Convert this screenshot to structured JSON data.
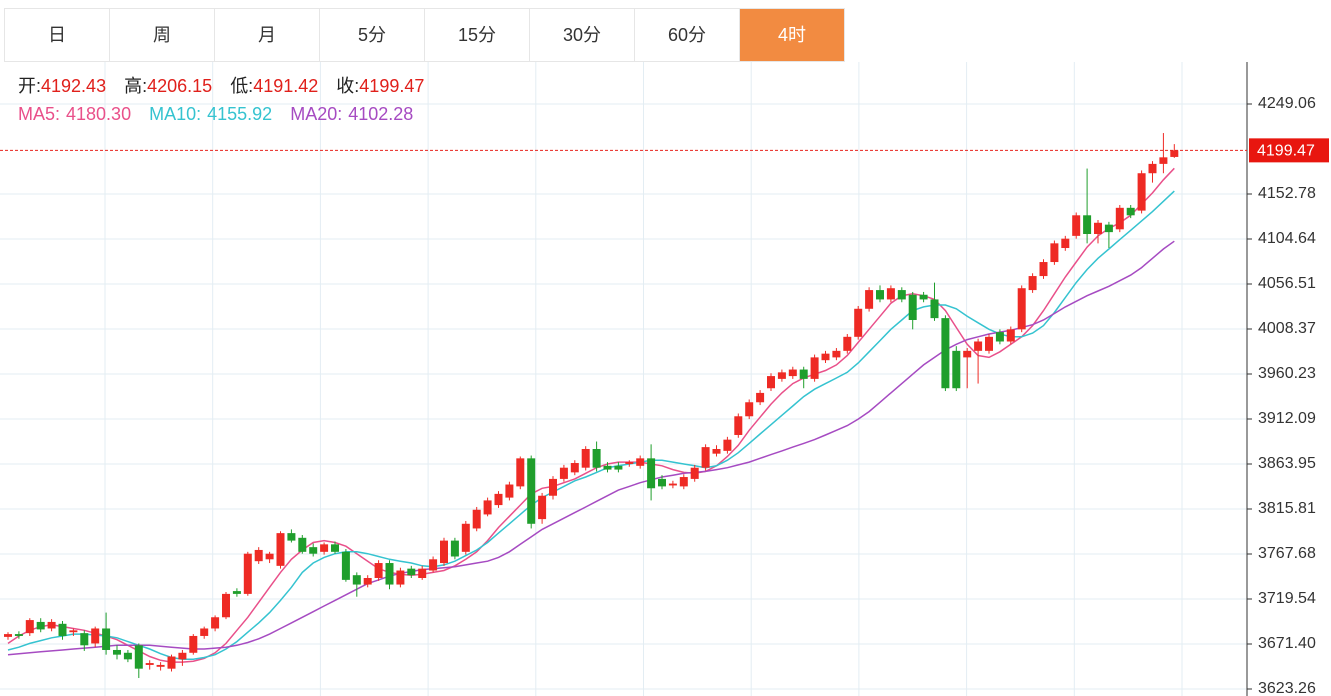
{
  "tabs": [
    "日",
    "周",
    "月",
    "5分",
    "15分",
    "30分",
    "60分",
    "4时"
  ],
  "active_tab": 7,
  "ohlc_info": [
    {
      "label": "开:",
      "value": 4192.43
    },
    {
      "label": "高:",
      "value": 4206.15
    },
    {
      "label": "低:",
      "value": 4191.42
    },
    {
      "label": "收:",
      "value": 4199.47
    }
  ],
  "chart_data": {
    "type": "candlestick",
    "up_color": "#ee2a24",
    "down_color": "#1f9e2c",
    "grid": true,
    "ylim": [
      3615.77,
      4293.99
    ],
    "yticks": [
      4249.06,
      4152.78,
      4104.64,
      4056.51,
      4008.37,
      3960.23,
      3912.09,
      3863.95,
      3815.81,
      3767.68,
      3719.54,
      {
        "value": 3671.4,
        "label": "3671.40"
      },
      3623.26
    ],
    "candles": [
      [
        3679,
        3684,
        3676,
        3682
      ],
      [
        3682,
        3685,
        3677,
        3680
      ],
      [
        3683,
        3699,
        3680,
        3697
      ],
      [
        3695,
        3699,
        3684,
        3687
      ],
      [
        3688,
        3698,
        3685,
        3695
      ],
      [
        3693,
        3696,
        3676,
        3680
      ],
      [
        3684,
        3688,
        3680,
        3686
      ],
      [
        3683,
        3686,
        3664,
        3670
      ],
      [
        3672,
        3690,
        3668,
        3688
      ],
      [
        3688,
        3705,
        3660,
        3665
      ],
      [
        3665,
        3670,
        3655,
        3660
      ],
      [
        3662,
        3665,
        3652,
        3655
      ],
      [
        3670,
        3672,
        3635,
        3645
      ],
      [
        3649,
        3654,
        3644,
        3651
      ],
      [
        3647,
        3652,
        3643,
        3649
      ],
      [
        3645,
        3660,
        3642,
        3658
      ],
      [
        3655,
        3665,
        3648,
        3662
      ],
      [
        3662,
        3682,
        3660,
        3680
      ],
      [
        3680,
        3690,
        3677,
        3688
      ],
      [
        3688,
        3702,
        3685,
        3700
      ],
      [
        3700,
        3727,
        3698,
        3725
      ],
      [
        3728,
        3731,
        3722,
        3725
      ],
      [
        3725,
        3770,
        3723,
        3768
      ],
      [
        3760,
        3775,
        3757,
        3772
      ],
      [
        3762,
        3770,
        3758,
        3768
      ],
      [
        3755,
        3792,
        3752,
        3790
      ],
      [
        3790,
        3794,
        3780,
        3782
      ],
      [
        3785,
        3788,
        3768,
        3770
      ],
      [
        3775,
        3779,
        3765,
        3768
      ],
      [
        3770,
        3780,
        3767,
        3778
      ],
      [
        3778,
        3781,
        3768,
        3770
      ],
      [
        3770,
        3773,
        3738,
        3740
      ],
      [
        3745,
        3748,
        3722,
        3735
      ],
      [
        3735,
        3745,
        3732,
        3742
      ],
      [
        3742,
        3761,
        3739,
        3758
      ],
      [
        3758,
        3761,
        3730,
        3735
      ],
      [
        3735,
        3753,
        3732,
        3750
      ],
      [
        3752,
        3755,
        3742,
        3745
      ],
      [
        3742,
        3755,
        3740,
        3752
      ],
      [
        3750,
        3765,
        3748,
        3762
      ],
      [
        3758,
        3785,
        3755,
        3782
      ],
      [
        3782,
        3785,
        3762,
        3765
      ],
      [
        3770,
        3803,
        3767,
        3800
      ],
      [
        3795,
        3818,
        3792,
        3815
      ],
      [
        3810,
        3828,
        3808,
        3825
      ],
      [
        3820,
        3835,
        3817,
        3832
      ],
      [
        3828,
        3845,
        3825,
        3842
      ],
      [
        3840,
        3872,
        3837,
        3870
      ],
      [
        3870,
        3873,
        3795,
        3800
      ],
      [
        3805,
        3833,
        3800,
        3830
      ],
      [
        3830,
        3851,
        3826,
        3848
      ],
      [
        3848,
        3863,
        3845,
        3860
      ],
      [
        3855,
        3868,
        3852,
        3865
      ],
      [
        3860,
        3883,
        3857,
        3880
      ],
      [
        3880,
        3888,
        3856,
        3860
      ],
      [
        3862,
        3866,
        3855,
        3858
      ],
      [
        3862,
        3866,
        3855,
        3858
      ],
      [
        3864,
        3868,
        3861,
        3866
      ],
      [
        3862,
        3873,
        3859,
        3870
      ],
      [
        3870,
        3885,
        3825,
        3838
      ],
      [
        3848,
        3852,
        3837,
        3840
      ],
      [
        3841,
        3846,
        3838,
        3843
      ],
      [
        3840,
        3853,
        3837,
        3850
      ],
      [
        3848,
        3863,
        3845,
        3860
      ],
      [
        3860,
        3885,
        3857,
        3882
      ],
      [
        3875,
        3884,
        3872,
        3880
      ],
      [
        3878,
        3893,
        3875,
        3890
      ],
      [
        3895,
        3918,
        3892,
        3915
      ],
      [
        3915,
        3933,
        3912,
        3930
      ],
      [
        3930,
        3943,
        3927,
        3940
      ],
      [
        3945,
        3961,
        3942,
        3958
      ],
      [
        3955,
        3965,
        3952,
        3962
      ],
      [
        3958,
        3968,
        3955,
        3965
      ],
      [
        3965,
        3968,
        3945,
        3955
      ],
      [
        3955,
        3981,
        3952,
        3978
      ],
      [
        3975,
        3985,
        3972,
        3982
      ],
      [
        3978,
        3988,
        3975,
        3985
      ],
      [
        3985,
        4003,
        3982,
        4000
      ],
      [
        4000,
        4033,
        3997,
        4030
      ],
      [
        4030,
        4053,
        4027,
        4050
      ],
      [
        4050,
        4055,
        4037,
        4040
      ],
      [
        4040,
        4055,
        4037,
        4052
      ],
      [
        4050,
        4053,
        4037,
        4040
      ],
      [
        4045,
        4048,
        4008,
        4018
      ],
      [
        4045,
        4048,
        4037,
        4040
      ],
      [
        4040,
        4058,
        4017,
        4020
      ],
      [
        4020,
        4023,
        3942,
        3945
      ],
      [
        3985,
        3990,
        3942,
        3945
      ],
      [
        3978,
        3988,
        3945,
        3985
      ],
      [
        3985,
        3998,
        3950,
        3995
      ],
      [
        3985,
        4003,
        3982,
        4000
      ],
      [
        4005,
        4008,
        3992,
        3995
      ],
      [
        3995,
        4011,
        3992,
        4008
      ],
      [
        4008,
        4055,
        4005,
        4052
      ],
      [
        4050,
        4068,
        4047,
        4065
      ],
      [
        4065,
        4083,
        4062,
        4080
      ],
      [
        4080,
        4103,
        4077,
        4100
      ],
      [
        4095,
        4108,
        4092,
        4105
      ],
      [
        4108,
        4133,
        4105,
        4130
      ],
      [
        4130,
        4180,
        4100,
        4110
      ],
      [
        4110,
        4125,
        4100,
        4122
      ],
      [
        4120,
        4123,
        4095,
        4112
      ],
      [
        4115,
        4141,
        4112,
        4138
      ],
      [
        4138,
        4141,
        4127,
        4130
      ],
      [
        4135,
        4178,
        4132,
        4175
      ],
      [
        4175,
        4188,
        4165,
        4185
      ],
      [
        4185,
        4218,
        4175,
        4192
      ],
      [
        4192.43,
        4206.15,
        4191.42,
        4199.47
      ]
    ],
    "series": [
      {
        "name": "MA5:",
        "color": "#e9508a",
        "last_label": "4180.30",
        "values": [
          3672,
          3680,
          3686,
          3690,
          3692,
          3690,
          3688,
          3686,
          3683,
          3680,
          3676,
          3670,
          3664,
          3658,
          3654,
          3652,
          3652,
          3653,
          3656,
          3662,
          3672,
          3686,
          3700,
          3716,
          3732,
          3748,
          3762,
          3772,
          3780,
          3782,
          3780,
          3776,
          3768,
          3760,
          3752,
          3748,
          3746,
          3745,
          3746,
          3748,
          3750,
          3755,
          3762,
          3770,
          3782,
          3796,
          3808,
          3820,
          3832,
          3838,
          3840,
          3844,
          3848,
          3854,
          3860,
          3864,
          3866,
          3866,
          3866,
          3864,
          3862,
          3858,
          3855,
          3854,
          3856,
          3862,
          3872,
          3884,
          3900,
          3914,
          3928,
          3940,
          3950,
          3956,
          3960,
          3964,
          3970,
          3980,
          3994,
          4008,
          4022,
          4036,
          4044,
          4046,
          4044,
          4040,
          4028,
          4010,
          3992,
          3980,
          3978,
          3984,
          3992,
          4000,
          4012,
          4028,
          4046,
          4064,
          4080,
          4096,
          4108,
          4116,
          4122,
          4130,
          4142,
          4154,
          4168,
          4180.3
        ]
      },
      {
        "name": "MA10:",
        "color": "#35c3d0",
        "last_label": "4155.92",
        "values": [
          3665,
          3668,
          3672,
          3675,
          3678,
          3680,
          3682,
          3682,
          3681,
          3680,
          3678,
          3674,
          3670,
          3666,
          3661,
          3657,
          3655,
          3655,
          3657,
          3660,
          3666,
          3674,
          3684,
          3694,
          3705,
          3718,
          3732,
          3748,
          3758,
          3764,
          3768,
          3770,
          3770,
          3768,
          3765,
          3762,
          3760,
          3758,
          3755,
          3754,
          3756,
          3760,
          3766,
          3772,
          3780,
          3790,
          3800,
          3810,
          3820,
          3828,
          3834,
          3840,
          3846,
          3850,
          3855,
          3860,
          3862,
          3864,
          3866,
          3868,
          3868,
          3866,
          3864,
          3862,
          3860,
          3862,
          3868,
          3876,
          3886,
          3896,
          3906,
          3916,
          3926,
          3936,
          3944,
          3950,
          3956,
          3962,
          3972,
          3984,
          3996,
          4008,
          4018,
          4028,
          4032,
          4034,
          4034,
          4030,
          4022,
          4015,
          4008,
          4003,
          4000,
          4000,
          4004,
          4012,
          4026,
          4042,
          4058,
          4072,
          4084,
          4094,
          4104,
          4114,
          4124,
          4134,
          4145,
          4155.92
        ]
      },
      {
        "name": "MA20:",
        "color": "#a64bc2",
        "last_label": "4102.28",
        "values": [
          3660,
          3661,
          3662,
          3663,
          3664,
          3665,
          3666,
          3667,
          3668,
          3669,
          3670,
          3670,
          3670,
          3670,
          3669,
          3668,
          3667,
          3666,
          3666,
          3667,
          3668,
          3670,
          3673,
          3677,
          3682,
          3688,
          3694,
          3700,
          3706,
          3712,
          3718,
          3724,
          3730,
          3736,
          3740,
          3744,
          3747,
          3749,
          3751,
          3752,
          3753,
          3754,
          3756,
          3758,
          3760,
          3764,
          3770,
          3778,
          3786,
          3794,
          3800,
          3806,
          3812,
          3818,
          3824,
          3830,
          3836,
          3840,
          3844,
          3847,
          3850,
          3852,
          3854,
          3855,
          3856,
          3858,
          3860,
          3863,
          3866,
          3870,
          3874,
          3878,
          3882,
          3886,
          3890,
          3895,
          3900,
          3905,
          3912,
          3920,
          3930,
          3940,
          3950,
          3960,
          3970,
          3978,
          3986,
          3992,
          3997,
          4000,
          4003,
          4005,
          4007,
          4010,
          4013,
          4018,
          4025,
          4032,
          4038,
          4044,
          4049,
          4054,
          4060,
          4066,
          4074,
          4084,
          4094,
          4102.28
        ]
      }
    ]
  }
}
